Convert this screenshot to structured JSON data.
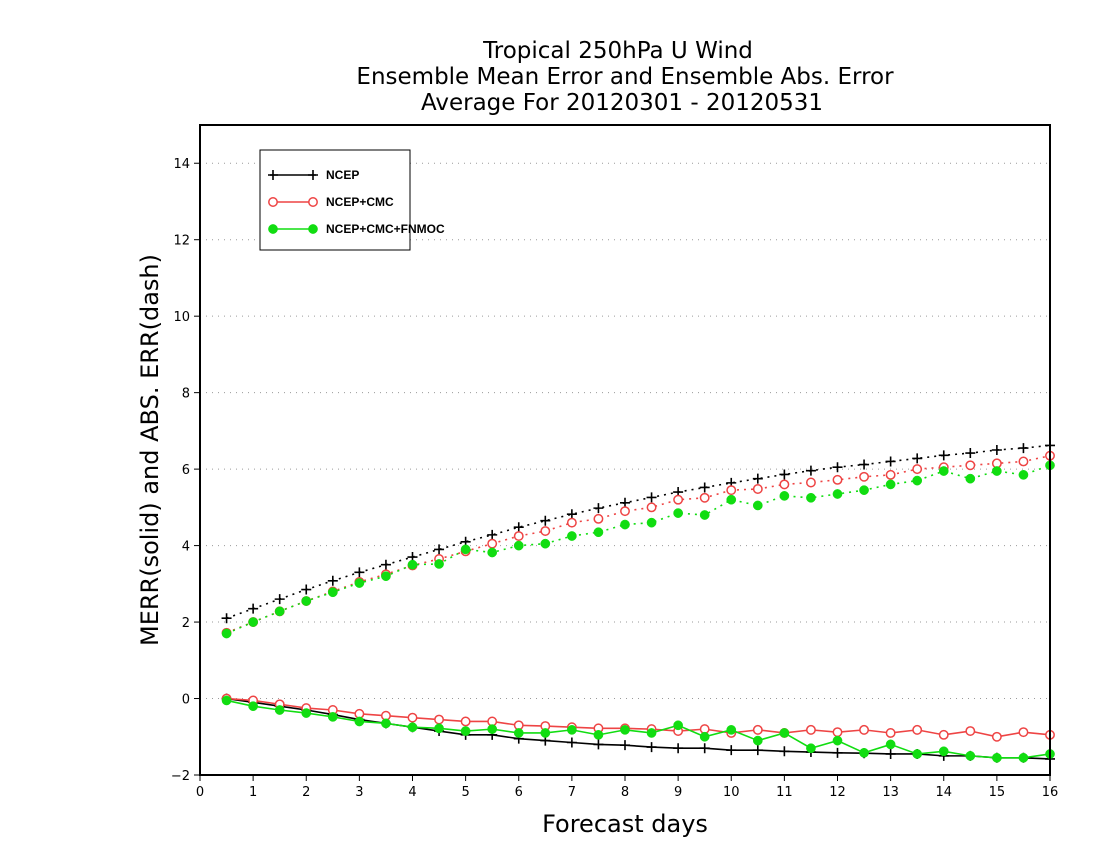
{
  "colors": {
    "ncep": "#000000",
    "ncep_cmc": "#ee4444",
    "ncep_cmc_fnmoc": "#11dd11",
    "grid": "#9a9a9a"
  },
  "chart_data": {
    "type": "line",
    "title": [
      "Tropical 250hPa U Wind",
      "Ensemble Mean Error and Ensemble Abs. Error",
      "Average For 20120301 - 20120531"
    ],
    "xlabel": "Forecast days",
    "ylabel": "MERR(solid) and ABS. ERR(dash)",
    "xlim": [
      0,
      16
    ],
    "ylim": [
      -2,
      15
    ],
    "xticks": [
      0,
      1,
      2,
      3,
      4,
      5,
      6,
      7,
      8,
      9,
      10,
      11,
      12,
      13,
      14,
      15,
      16
    ],
    "yticks": [
      -2,
      0,
      2,
      4,
      6,
      8,
      10,
      12,
      14
    ],
    "grid": "horizontal dotted",
    "legend_position": "top-left",
    "x": [
      0.5,
      1,
      1.5,
      2,
      2.5,
      3,
      3.5,
      4,
      4.5,
      5,
      5.5,
      6,
      6.5,
      7,
      7.5,
      8,
      8.5,
      9,
      9.5,
      10,
      10.5,
      11,
      11.5,
      12,
      12.5,
      13,
      13.5,
      14,
      14.5,
      15,
      15.5,
      16
    ],
    "series": [
      {
        "name": "NCEP",
        "marker": "plus",
        "color_key": "ncep",
        "abs_err": [
          2.1,
          2.35,
          2.6,
          2.85,
          3.08,
          3.3,
          3.5,
          3.7,
          3.9,
          4.1,
          4.28,
          4.48,
          4.65,
          4.82,
          4.98,
          5.12,
          5.26,
          5.4,
          5.52,
          5.64,
          5.75,
          5.86,
          5.96,
          6.05,
          6.12,
          6.2,
          6.28,
          6.36,
          6.42,
          6.5,
          6.55,
          6.62
        ],
        "mean_err": [
          0.0,
          -0.1,
          -0.2,
          -0.3,
          -0.42,
          -0.55,
          -0.65,
          -0.75,
          -0.85,
          -0.95,
          -0.95,
          -1.05,
          -1.1,
          -1.15,
          -1.2,
          -1.22,
          -1.27,
          -1.3,
          -1.3,
          -1.35,
          -1.35,
          -1.38,
          -1.4,
          -1.42,
          -1.43,
          -1.45,
          -1.45,
          -1.5,
          -1.5,
          -1.55,
          -1.55,
          -1.58
        ]
      },
      {
        "name": "NCEP+CMC",
        "marker": "open-circle",
        "color_key": "ncep_cmc",
        "abs_err": [
          1.72,
          2.0,
          2.28,
          2.55,
          2.8,
          3.05,
          3.25,
          3.48,
          3.65,
          3.85,
          4.05,
          4.25,
          4.38,
          4.6,
          4.7,
          4.9,
          5.0,
          5.2,
          5.25,
          5.45,
          5.48,
          5.6,
          5.65,
          5.72,
          5.8,
          5.85,
          6.0,
          6.05,
          6.1,
          6.15,
          6.2,
          6.35
        ],
        "mean_err": [
          0.0,
          -0.05,
          -0.15,
          -0.25,
          -0.3,
          -0.4,
          -0.45,
          -0.5,
          -0.55,
          -0.6,
          -0.6,
          -0.7,
          -0.72,
          -0.75,
          -0.78,
          -0.78,
          -0.8,
          -0.85,
          -0.8,
          -0.9,
          -0.82,
          -0.9,
          -0.82,
          -0.88,
          -0.82,
          -0.9,
          -0.82,
          -0.95,
          -0.85,
          -1.0,
          -0.88,
          -0.95
        ]
      },
      {
        "name": "NCEP+CMC+FNMOC",
        "marker": "filled-circle",
        "color_key": "ncep_cmc_fnmoc",
        "abs_err": [
          1.7,
          2.0,
          2.28,
          2.55,
          2.78,
          3.02,
          3.2,
          3.5,
          3.52,
          3.9,
          3.82,
          4.0,
          4.05,
          4.25,
          4.35,
          4.55,
          4.6,
          4.85,
          4.8,
          5.2,
          5.05,
          5.3,
          5.25,
          5.35,
          5.45,
          5.6,
          5.7,
          5.95,
          5.75,
          5.95,
          5.85,
          6.1
        ],
        "mean_err": [
          -0.05,
          -0.2,
          -0.3,
          -0.38,
          -0.48,
          -0.6,
          -0.65,
          -0.75,
          -0.78,
          -0.85,
          -0.8,
          -0.9,
          -0.9,
          -0.82,
          -0.95,
          -0.82,
          -0.9,
          -0.7,
          -1.0,
          -0.82,
          -1.1,
          -0.9,
          -1.3,
          -1.1,
          -1.42,
          -1.2,
          -1.45,
          -1.38,
          -1.5,
          -1.55,
          -1.55,
          -1.45
        ]
      }
    ]
  }
}
